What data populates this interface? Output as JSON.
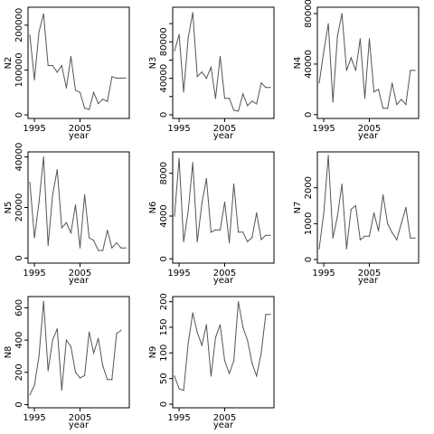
{
  "figure": {
    "colors": {
      "line": "#555555",
      "frame": "#000000",
      "background": "#ffffff"
    }
  },
  "chart_data": [
    {
      "type": "line",
      "ylabel": "N2",
      "xlabel": "year",
      "x": [
        1994,
        1995,
        1996,
        1997,
        1998,
        1999,
        2000,
        2001,
        2002,
        2003,
        2004,
        2005,
        2006,
        2007,
        2008,
        2009,
        2010,
        2011,
        2012,
        2013,
        2014,
        2015
      ],
      "values": [
        178000,
        78000,
        185000,
        225000,
        110000,
        110000,
        95000,
        110000,
        60000,
        130000,
        55000,
        50000,
        15000,
        12000,
        50000,
        25000,
        35000,
        30000,
        85000,
        82000,
        82000,
        82000
      ],
      "xticks": [
        1995,
        2005
      ],
      "xtick_labels": [
        "1995",
        "2005"
      ],
      "yticks": [
        0,
        100000,
        200000
      ],
      "ytick_labels": [
        "0",
        "100000",
        "200000"
      ],
      "xlim": [
        1993.6,
        2015.8
      ],
      "ylim": [
        -8000,
        240000
      ]
    },
    {
      "type": "line",
      "ylabel": "N3",
      "xlabel": "year",
      "x": [
        1994,
        1995,
        1996,
        1997,
        1998,
        1999,
        2000,
        2001,
        2002,
        2003,
        2004,
        2005,
        2006,
        2007,
        2008,
        2009,
        2010,
        2011,
        2012,
        2013,
        2014,
        2015
      ],
      "values": [
        70000,
        88000,
        25000,
        85000,
        112000,
        42000,
        47000,
        40000,
        52000,
        18000,
        64000,
        18000,
        18000,
        5000,
        4000,
        23000,
        10000,
        15000,
        12000,
        35000,
        30000,
        30000
      ],
      "xticks": [
        1995,
        2005
      ],
      "xtick_labels": [
        "1995",
        "2005"
      ],
      "yticks": [
        0,
        40000,
        80000
      ],
      "ytick_labels": [
        "0",
        "40000",
        "80000"
      ],
      "yticks_minor": [
        20000,
        60000,
        100000
      ],
      "xlim": [
        1993.6,
        2015.8
      ],
      "ylim": [
        -4000,
        118000
      ]
    },
    {
      "type": "line",
      "ylabel": "N4",
      "xlabel": "year",
      "x": [
        1994,
        1995,
        1996,
        1997,
        1998,
        1999,
        2000,
        2001,
        2002,
        2003,
        2004,
        2005,
        2006,
        2007,
        2008,
        2009,
        2010,
        2011,
        2012,
        2013,
        2014,
        2015
      ],
      "values": [
        25000,
        50000,
        72000,
        10000,
        62000,
        80000,
        35000,
        45000,
        35000,
        60000,
        13000,
        60000,
        18000,
        20000,
        5000,
        5000,
        25000,
        8000,
        12000,
        8000,
        35000,
        35000
      ],
      "xticks": [
        1995,
        2005
      ],
      "xtick_labels": [
        "1995",
        "2005"
      ],
      "yticks": [
        0,
        40000,
        80000
      ],
      "ytick_labels": [
        "0",
        "40000",
        "80000"
      ],
      "xlim": [
        1993.6,
        2015.8
      ],
      "ylim": [
        -3000,
        85000
      ]
    },
    {
      "type": "line",
      "ylabel": "N5",
      "xlabel": "year",
      "x": [
        1994,
        1995,
        1996,
        1997,
        1998,
        1999,
        2000,
        2001,
        2002,
        2003,
        2004,
        2005,
        2006,
        2007,
        2008,
        2009,
        2010,
        2011,
        2012,
        2013,
        2014,
        2015
      ],
      "values": [
        30000,
        8000,
        22000,
        40000,
        5000,
        25000,
        35000,
        12000,
        14000,
        10000,
        21000,
        4000,
        25000,
        8000,
        7000,
        3000,
        3000,
        11000,
        4000,
        6000,
        4000,
        4000
      ],
      "xticks": [
        1995,
        2005
      ],
      "xtick_labels": [
        "1995",
        "2005"
      ],
      "yticks": [
        0,
        20000,
        40000
      ],
      "ytick_labels": [
        "0",
        "20000",
        "40000"
      ],
      "xlim": [
        1993.6,
        2015.8
      ],
      "ylim": [
        -2000,
        42000
      ]
    },
    {
      "type": "line",
      "ylabel": "N6",
      "xlabel": "year",
      "x": [
        1994,
        1995,
        1996,
        1997,
        1998,
        1999,
        2000,
        2001,
        2002,
        2003,
        2004,
        2005,
        2006,
        2007,
        2008,
        2009,
        2010,
        2011,
        2012,
        2013,
        2014,
        2015
      ],
      "values": [
        4000,
        9400,
        1600,
        4500,
        9000,
        1600,
        5200,
        7500,
        2500,
        2700,
        2700,
        5300,
        1500,
        7000,
        2500,
        2500,
        1600,
        2000,
        4300,
        1800,
        2200,
        2200
      ],
      "xticks": [
        1995,
        2005
      ],
      "xtick_labels": [
        "1995",
        "2005"
      ],
      "yticks": [
        0,
        4000,
        8000
      ],
      "ytick_labels": [
        "0",
        "4000",
        "8000"
      ],
      "xlim": [
        1993.6,
        2015.8
      ],
      "ylim": [
        -400,
        10000
      ]
    },
    {
      "type": "line",
      "ylabel": "N7",
      "xlabel": "year",
      "x": [
        1994,
        1995,
        1996,
        1997,
        1998,
        1999,
        2000,
        2001,
        2002,
        2003,
        2004,
        2005,
        2006,
        2007,
        2008,
        2009,
        2010,
        2011,
        2012,
        2013,
        2014,
        2015
      ],
      "values": [
        300,
        1300,
        2900,
        600,
        1200,
        2100,
        300,
        1400,
        1500,
        550,
        650,
        650,
        1300,
        800,
        1800,
        1000,
        750,
        550,
        1000,
        1450,
        600,
        600
      ],
      "xticks": [
        1995,
        2005
      ],
      "xtick_labels": [
        "1995",
        "2005"
      ],
      "yticks": [
        0,
        1000,
        2000
      ],
      "ytick_labels": [
        "0",
        "1000",
        "2000"
      ],
      "xlim": [
        1993.6,
        2015.8
      ],
      "ylim": [
        -100,
        3000
      ]
    },
    {
      "type": "line",
      "ylabel": "N8",
      "xlabel": "year",
      "x": [
        1994,
        1995,
        1996,
        1997,
        1998,
        1999,
        2000,
        2001,
        2002,
        2003,
        2004,
        2005,
        2006,
        2007,
        2008,
        2009,
        2010,
        2011,
        2012,
        2013,
        2014
      ],
      "values": [
        60,
        120,
        300,
        640,
        210,
        400,
        470,
        90,
        400,
        360,
        200,
        165,
        180,
        450,
        320,
        410,
        240,
        155,
        155,
        440,
        460
      ],
      "xticks": [
        1995,
        2005
      ],
      "xtick_labels": [
        "1995",
        "2005"
      ],
      "yticks": [
        0,
        200,
        400,
        600
      ],
      "ytick_labels": [
        "0",
        "200",
        "400",
        "600"
      ],
      "xlim": [
        1993.6,
        2015.8
      ],
      "ylim": [
        -20,
        670
      ]
    },
    {
      "type": "line",
      "ylabel": "N9",
      "xlabel": "year",
      "x": [
        1994,
        1995,
        1996,
        1997,
        1998,
        1999,
        2000,
        2001,
        2002,
        2003,
        2004,
        2005,
        2006,
        2007,
        2008,
        2009,
        2010,
        2011,
        2012,
        2013,
        2014,
        2015
      ],
      "values": [
        55,
        30,
        27,
        120,
        178,
        140,
        115,
        155,
        55,
        130,
        155,
        85,
        60,
        85,
        200,
        150,
        125,
        80,
        55,
        100,
        175,
        175
      ],
      "xticks": [
        1995,
        2005
      ],
      "xtick_labels": [
        "1995",
        "2005"
      ],
      "yticks": [
        0,
        50,
        100,
        150,
        200
      ],
      "ytick_labels": [
        "0",
        "50",
        "100",
        "150",
        "200"
      ],
      "xlim": [
        1993.6,
        2015.8
      ],
      "ylim": [
        -7,
        210
      ]
    }
  ]
}
